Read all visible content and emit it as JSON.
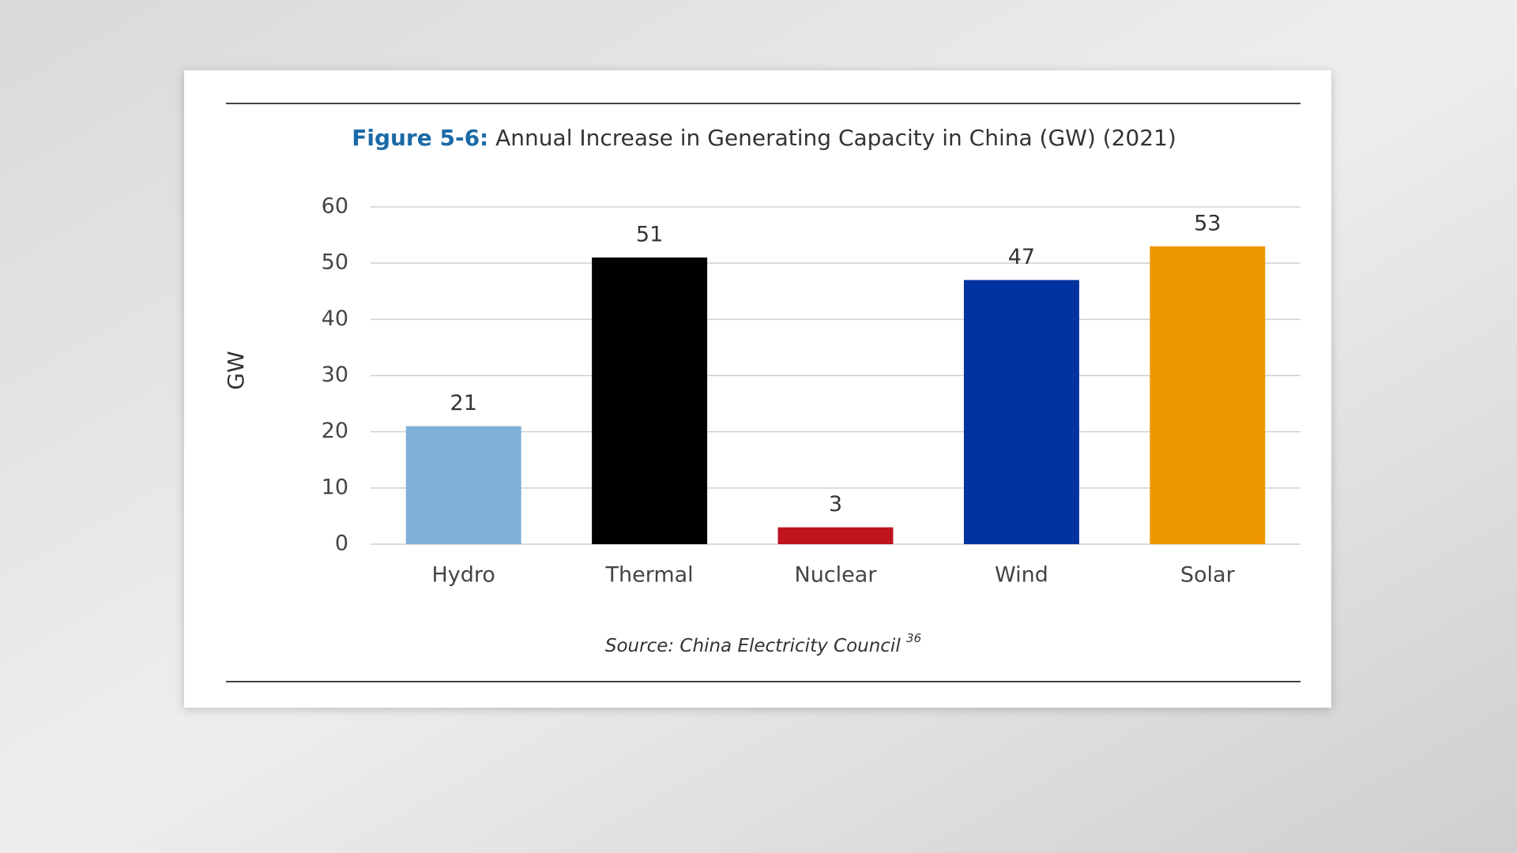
{
  "chart_data": {
    "type": "bar",
    "title_prefix": "Figure 5-6:",
    "title": "Annual Increase in Generating Capacity in China (GW) (2021)",
    "y_label": "GW",
    "categories": [
      "Hydro",
      "Thermal",
      "Nuclear",
      "Wind",
      "Solar"
    ],
    "values": [
      21,
      51,
      3,
      47,
      53
    ],
    "colors": [
      "#7fb0d8",
      "#000000",
      "#c0141e",
      "#0033a0",
      "#ee9600"
    ],
    "ylim": [
      0,
      60
    ],
    "yticks": [
      0,
      10,
      20,
      30,
      40,
      50,
      60
    ],
    "grid": true,
    "source": "Source: China Electricity Council",
    "source_note": "36"
  }
}
